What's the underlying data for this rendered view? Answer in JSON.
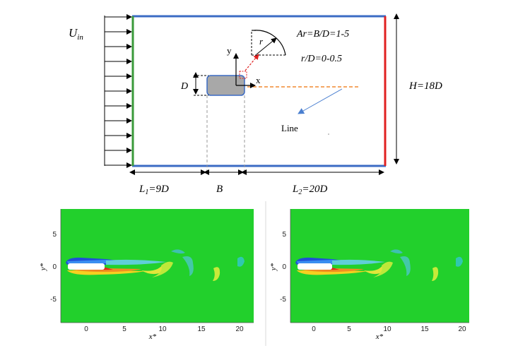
{
  "schematic": {
    "inlet_label_main": "U",
    "inlet_label_sub": "in",
    "axis_x": "x",
    "axis_y": "y",
    "radius_label": "r",
    "aspect_ratio": "Ar=B/D=1-5",
    "radius_ratio": "r/D=0-0.5",
    "height_label": "H=18D",
    "diameter_label": "D",
    "line_label": "Line",
    "upstream_label_main": "L",
    "upstream_label_sub": "1",
    "upstream_label_rest": "=9D",
    "width_label": "B",
    "downstream_label_main": "L",
    "downstream_label_sub": "2",
    "downstream_label_rest": "=20D",
    "colors": {
      "inlet_wall": "#3a9a3a",
      "side_walls": "#3b6bc4",
      "outlet_wall": "#e02020",
      "wake_line": "#f08a30",
      "cylinder": "#a8a8a8",
      "cylinder_edge": "#3b6bc4"
    }
  },
  "contour_plots": [
    {
      "x_label": "x*",
      "y_label": "y*",
      "x_ticks": [
        "0",
        "5",
        "10",
        "15",
        "20"
      ],
      "y_ticks": [
        "5",
        "0",
        "-5"
      ],
      "background_color": "#22d02c"
    },
    {
      "x_label": "x*",
      "y_label": "y*",
      "x_ticks": [
        "0",
        "5",
        "10",
        "15",
        "20"
      ],
      "y_ticks": [
        "5",
        "0",
        "-5"
      ],
      "background_color": "#22d02c"
    }
  ]
}
